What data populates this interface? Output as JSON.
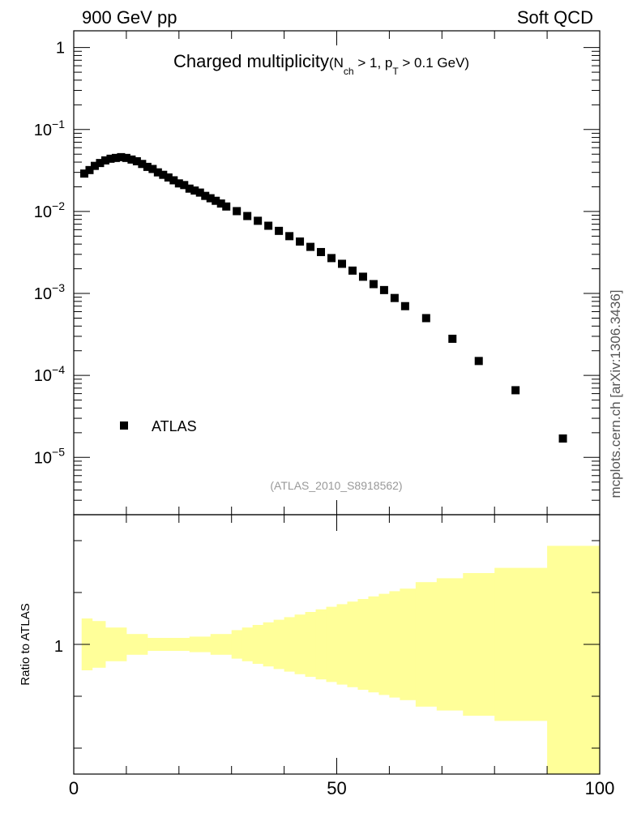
{
  "header": {
    "left": "900 GeV pp",
    "right": "Soft QCD"
  },
  "side_label": "mcplots.cern.ch [arXiv:1306.3436]",
  "chart_data": [
    {
      "type": "scatter",
      "title_main": "Charged multiplicity",
      "title_paren_open": "(N",
      "title_sub_ch": "ch",
      "title_mid": " > 1, p",
      "title_sub_T": "T",
      "title_end": " > 0.1 GeV)",
      "analysis_label": "(ATLAS_2010_S8918562)",
      "legend": {
        "label": "ATLAS",
        "placement": "left"
      },
      "xlim": [
        0,
        100
      ],
      "ylim": [
        2e-06,
        1.6
      ],
      "yscale": "log",
      "y_ticks": [
        {
          "base": "1",
          "exp": "",
          "value": 1
        },
        {
          "base": "10",
          "exp": "−1",
          "value": 0.1
        },
        {
          "base": "10",
          "exp": "−2",
          "value": 0.01
        },
        {
          "base": "10",
          "exp": "−3",
          "value": 0.001
        },
        {
          "base": "10",
          "exp": "−4",
          "value": 0.0001
        },
        {
          "base": "10",
          "exp": "−5",
          "value": 1e-05
        }
      ],
      "series": [
        {
          "name": "ATLAS",
          "color": "#000000",
          "points": [
            [
              2,
              0.029
            ],
            [
              3,
              0.032
            ],
            [
              4,
              0.036
            ],
            [
              5,
              0.039
            ],
            [
              6,
              0.042
            ],
            [
              7,
              0.044
            ],
            [
              8,
              0.045
            ],
            [
              9,
              0.046
            ],
            [
              10,
              0.045
            ],
            [
              11,
              0.043
            ],
            [
              12,
              0.041
            ],
            [
              13,
              0.038
            ],
            [
              14,
              0.035
            ],
            [
              15,
              0.033
            ],
            [
              16,
              0.03
            ],
            [
              17,
              0.028
            ],
            [
              18,
              0.026
            ],
            [
              19,
              0.024
            ],
            [
              20,
              0.022
            ],
            [
              21,
              0.021
            ],
            [
              22,
              0.019
            ],
            [
              23,
              0.018
            ],
            [
              24,
              0.017
            ],
            [
              25,
              0.0155
            ],
            [
              26,
              0.0145
            ],
            [
              27,
              0.0135
            ],
            [
              28,
              0.0125
            ],
            [
              29,
              0.0115
            ],
            [
              31,
              0.0101
            ],
            [
              33,
              0.0088
            ],
            [
              35,
              0.0077
            ],
            [
              37,
              0.0067
            ],
            [
              39,
              0.0058
            ],
            [
              41,
              0.005
            ],
            [
              43,
              0.0043
            ],
            [
              45,
              0.0037
            ],
            [
              47,
              0.0032
            ],
            [
              49,
              0.0027
            ],
            [
              51,
              0.0023
            ],
            [
              53,
              0.0019
            ],
            [
              55,
              0.0016
            ],
            [
              57,
              0.0013
            ],
            [
              59,
              0.0011
            ],
            [
              61,
              0.00088
            ],
            [
              63,
              0.0007
            ],
            [
              67,
              0.0005
            ],
            [
              72,
              0.00028
            ],
            [
              77,
              0.00015
            ],
            [
              84,
              6.6e-05
            ],
            [
              93,
              1.7e-05
            ]
          ]
        }
      ]
    },
    {
      "type": "area",
      "ylabel": "Ratio to ATLAS",
      "xlim": [
        0,
        100
      ],
      "ylim": [
        0.5,
        1.5
      ],
      "y_tick_label": "1",
      "x_tick_labels": [
        "0",
        "50",
        "100"
      ],
      "x_ticks": [
        0,
        50,
        100
      ],
      "band_color": "#ffff99",
      "band": [
        [
          1.5,
          0.9,
          1.1
        ],
        [
          3.5,
          0.91,
          1.09
        ],
        [
          6,
          0.935,
          1.065
        ],
        [
          10,
          0.96,
          1.04
        ],
        [
          14,
          0.975,
          1.025
        ],
        [
          18,
          0.975,
          1.025
        ],
        [
          22,
          0.97,
          1.03
        ],
        [
          26,
          0.96,
          1.04
        ],
        [
          30,
          0.945,
          1.055
        ],
        [
          32,
          0.935,
          1.065
        ],
        [
          34,
          0.925,
          1.075
        ],
        [
          36,
          0.915,
          1.085
        ],
        [
          38,
          0.905,
          1.095
        ],
        [
          40,
          0.895,
          1.105
        ],
        [
          42,
          0.885,
          1.115
        ],
        [
          44,
          0.875,
          1.125
        ],
        [
          46,
          0.865,
          1.135
        ],
        [
          48,
          0.855,
          1.145
        ],
        [
          50,
          0.845,
          1.155
        ],
        [
          52,
          0.835,
          1.165
        ],
        [
          54,
          0.825,
          1.175
        ],
        [
          56,
          0.815,
          1.185
        ],
        [
          58,
          0.805,
          1.195
        ],
        [
          60,
          0.795,
          1.205
        ],
        [
          62,
          0.785,
          1.215
        ],
        [
          65,
          0.76,
          1.24
        ],
        [
          69,
          0.745,
          1.255
        ],
        [
          74,
          0.725,
          1.275
        ],
        [
          80,
          0.705,
          1.295
        ],
        [
          90,
          0.5,
          1.38
        ],
        [
          100,
          0.5,
          1.38
        ]
      ]
    }
  ]
}
